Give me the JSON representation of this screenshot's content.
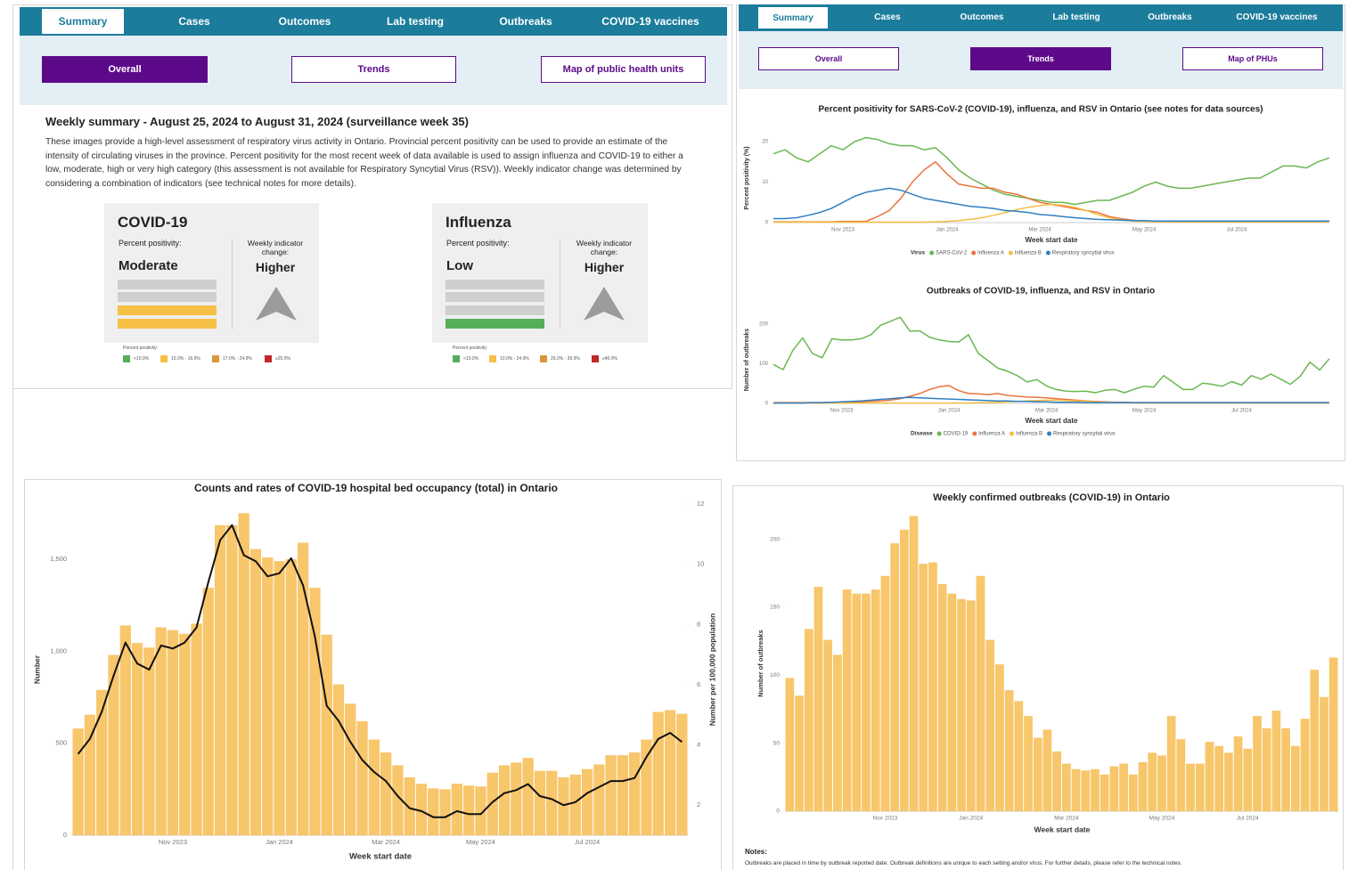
{
  "left_panel": {
    "tabs": [
      "Summary",
      "Cases",
      "Outcomes",
      "Lab testing",
      "Outbreaks",
      "COVID-19 vaccines"
    ],
    "buttons": [
      "Overall",
      "Trends",
      "Map of public health units"
    ],
    "heading": "Weekly summary - August 25, 2024 to August 31, 2024 (surveillance week 35)",
    "paragraph": "These images provide a high-level assessment of respiratory virus activity in Ontario. Provincial percent positivity can be used to provide an estimate of the intensity of circulating viruses in the province. Percent positivity for the most recent week of data available is used to assign influenza and COVID-19 to either a low, moderate, high or very high category (this assessment is not available for Respiratory Syncytial Virus (RSV)). Weekly indicator change was determined by considering a combination of indicators (see technical notes for more details).",
    "cards": [
      {
        "title": "COVID-19",
        "positivity_label": "Percent positivity:",
        "positivity": "Moderate",
        "change_label": "Weekly indicator change:",
        "change": "Higher",
        "legend_title": "Percent positivity:",
        "legend": [
          "<10.0%",
          "10.0% - 16.9%",
          "17.0% - 24.9%",
          "≥25.0%"
        ]
      },
      {
        "title": "Influenza",
        "positivity_label": "Percent positivity:",
        "positivity": "Low",
        "change_label": "Weekly indicator change:",
        "change": "Higher",
        "legend_title": "Percent positivity:",
        "legend": [
          "<10.0%",
          "10.0% - 24.9%",
          "25.0% - 39.9%",
          "≥40.0%"
        ]
      }
    ]
  },
  "right_panel": {
    "tabs": [
      "Summary",
      "Cases",
      "Outcomes",
      "Lab testing",
      "Outbreaks",
      "COVID-19 vaccines"
    ],
    "buttons": [
      "Overall",
      "Trends",
      "Map of PHUs"
    ]
  },
  "chart_data": [
    {
      "type": "line",
      "title": "Percent positivity for SARS-CoV-2 (COVID-19), influenza, and RSV in Ontario (see notes for data sources)",
      "x_label": "Week start date",
      "y_label": "Percent positivity (%)",
      "legend_title": "Virus",
      "categories": [
        null,
        null,
        null,
        null,
        null,
        null,
        "Nov 2023",
        null,
        null,
        null,
        null,
        null,
        null,
        null,
        null,
        "Jan 2024",
        null,
        null,
        null,
        null,
        null,
        null,
        null,
        "Mar 2024",
        null,
        null,
        null,
        null,
        null,
        null,
        null,
        null,
        "May 2024",
        null,
        null,
        null,
        null,
        null,
        null,
        null,
        "Jul 2024",
        null,
        null,
        null,
        null,
        null,
        null,
        null,
        null
      ],
      "ylim": [
        0,
        22
      ],
      "yticks": [
        0,
        10,
        20
      ],
      "grid": false,
      "series": [
        {
          "name": "SARS-CoV-2",
          "color": "#6ab750",
          "values": [
            17,
            18,
            16,
            15,
            17,
            19,
            18,
            20,
            21,
            20.5,
            19.5,
            19,
            19,
            18,
            18.5,
            16,
            13,
            11,
            9.5,
            8,
            7,
            6.5,
            6,
            5.5,
            5,
            5,
            4.5,
            5,
            5.5,
            5.5,
            6.5,
            7.5,
            9,
            10,
            9,
            8.5,
            8.5,
            9,
            9.5,
            10,
            10.5,
            11,
            11,
            12.5,
            14,
            14,
            13.5,
            15,
            16
          ]
        },
        {
          "name": "Influenza A",
          "color": "#e8743b",
          "values": [
            0.2,
            0.2,
            0.2,
            0.2,
            0.2,
            0.2,
            0.3,
            0.3,
            0.3,
            1.5,
            3,
            6,
            10,
            13,
            15,
            12,
            9.5,
            9,
            8.5,
            8.5,
            7.5,
            7,
            6,
            5,
            4.5,
            4,
            3.5,
            3,
            2.5,
            1.5,
            1,
            0.6,
            0.4,
            0.3,
            0.3,
            0.2,
            0.2,
            0.2,
            0.2,
            0.2,
            0.2,
            0.2,
            0.2,
            0.2,
            0.2,
            0.2,
            0.2,
            0.2,
            0.3
          ]
        },
        {
          "name": "Influenza B",
          "color": "#f4bd45",
          "values": [
            0.1,
            0.1,
            0.1,
            0.1,
            0.1,
            0.1,
            0.1,
            0.1,
            0.1,
            0.1,
            0.1,
            0.1,
            0.1,
            0.1,
            0.2,
            0.3,
            0.5,
            0.8,
            1.2,
            1.8,
            2.5,
            3.2,
            3.8,
            4.2,
            4.5,
            4.3,
            3.8,
            3,
            2,
            1.2,
            0.7,
            0.4,
            0.3,
            0.2,
            0.2,
            0.2,
            0.2,
            0.2,
            0.2,
            0.2,
            0.2,
            0.2,
            0.2,
            0.2,
            0.2,
            0.2,
            0.2,
            0.2,
            0.2
          ]
        },
        {
          "name": "Respiratory syncytial virus",
          "color": "#2f7fc1",
          "values": [
            1,
            1,
            1.2,
            1.8,
            2.5,
            3.5,
            5,
            6.5,
            7.5,
            8,
            8.5,
            8,
            7,
            6,
            5.5,
            5,
            4.5,
            4,
            3.8,
            3.5,
            3,
            2.8,
            2.5,
            2,
            1.8,
            1.5,
            1.2,
            1,
            0.8,
            0.7,
            0.6,
            0.5,
            0.5,
            0.4,
            0.4,
            0.4,
            0.4,
            0.4,
            0.4,
            0.4,
            0.4,
            0.4,
            0.4,
            0.4,
            0.4,
            0.4,
            0.4,
            0.4,
            0.4
          ]
        }
      ]
    },
    {
      "type": "line",
      "title": "Outbreaks of COVID-19, influenza, and RSV in Ontario",
      "x_label": "Week start date",
      "y_label": "Number of outbreaks",
      "legend_title": "Disease",
      "categories": [
        null,
        null,
        null,
        null,
        null,
        null,
        null,
        "Nov 2023",
        null,
        null,
        null,
        null,
        null,
        null,
        null,
        null,
        null,
        null,
        "Jan 2024",
        null,
        null,
        null,
        null,
        null,
        null,
        null,
        null,
        null,
        "Mar 2024",
        null,
        null,
        null,
        null,
        null,
        null,
        null,
        null,
        null,
        "May 2024",
        null,
        null,
        null,
        null,
        null,
        null,
        null,
        null,
        null,
        "Jul 2024",
        null,
        null,
        null,
        null,
        null,
        null,
        null,
        null,
        null
      ],
      "ylim": [
        0,
        220
      ],
      "yticks": [
        0,
        100,
        200
      ],
      "grid": false,
      "series": [
        {
          "name": "COVID-19",
          "color": "#6ab750",
          "values": [
            98,
            85,
            134,
            165,
            126,
            115,
            163,
            160,
            160,
            163,
            173,
            197,
            207,
            217,
            182,
            183,
            167,
            160,
            156,
            155,
            173,
            126,
            108,
            89,
            81,
            70,
            54,
            60,
            44,
            35,
            31,
            30,
            31,
            27,
            33,
            35,
            27,
            36,
            43,
            41,
            70,
            53,
            35,
            35,
            51,
            48,
            43,
            55,
            46,
            70,
            61,
            74,
            61,
            48,
            68,
            104,
            84,
            113
          ]
        },
        {
          "name": "Influenza A",
          "color": "#e8743b",
          "values": [
            2,
            2,
            2,
            2,
            2,
            2,
            3,
            3,
            3,
            4,
            5,
            6,
            8,
            12,
            18,
            25,
            35,
            42,
            45,
            32,
            25,
            24,
            22,
            25,
            20,
            18,
            16,
            15,
            14,
            12,
            10,
            8,
            6,
            5,
            4,
            3,
            3,
            2,
            2,
            2,
            2,
            2,
            2,
            2,
            2,
            2,
            2,
            2,
            2,
            2,
            2,
            2,
            2,
            2,
            2,
            2,
            2,
            2
          ]
        },
        {
          "name": "Influenza B",
          "color": "#f4bd45",
          "values": [
            1,
            1,
            1,
            1,
            1,
            1,
            1,
            1,
            1,
            1,
            1,
            1,
            1,
            1,
            1,
            1,
            1,
            1,
            1,
            1,
            1,
            2,
            2,
            3,
            4,
            5,
            6,
            7,
            8,
            8,
            7,
            6,
            5,
            4,
            3,
            2,
            2,
            1,
            1,
            1,
            1,
            1,
            1,
            1,
            1,
            1,
            1,
            1,
            1,
            1,
            1,
            1,
            1,
            1,
            1,
            1,
            1,
            1
          ]
        },
        {
          "name": "Respiratory syncytial virus",
          "color": "#2f7fc1",
          "values": [
            1,
            1,
            1,
            1,
            2,
            2,
            3,
            4,
            5,
            6,
            8,
            10,
            12,
            14,
            15,
            14,
            13,
            12,
            11,
            10,
            9,
            8,
            7,
            6,
            6,
            5,
            5,
            4,
            4,
            3,
            3,
            3,
            2,
            2,
            2,
            2,
            2,
            2,
            2,
            2,
            2,
            2,
            2,
            2,
            2,
            2,
            2,
            2,
            2,
            2,
            2,
            2,
            2,
            2,
            2,
            2,
            2,
            2
          ]
        }
      ]
    },
    {
      "type": "bar",
      "title": "Counts and rates of COVID-19 hospital bed occupancy (total) in Ontario",
      "x_label": "Week start date",
      "y_label": "Number",
      "y2_label": "Number per 100,000 population",
      "categories": [
        null,
        null,
        null,
        null,
        null,
        null,
        null,
        null,
        "Nov 2023",
        null,
        null,
        null,
        null,
        null,
        null,
        null,
        null,
        "Jan 2024",
        null,
        null,
        null,
        null,
        null,
        null,
        null,
        null,
        "Mar 2024",
        null,
        null,
        null,
        null,
        null,
        null,
        null,
        "May 2024",
        null,
        null,
        null,
        null,
        null,
        null,
        null,
        null,
        "Jul 2024",
        null,
        null,
        null,
        null,
        null,
        null,
        null,
        null
      ],
      "ylim": [
        0,
        1800
      ],
      "yticks": [
        0,
        500,
        {
          "value": 1000,
          "label": "1,000"
        },
        {
          "value": 1500,
          "label": "1,500"
        }
      ],
      "y2lim": [
        1,
        12
      ],
      "y2ticks": [
        2,
        4,
        6,
        8,
        10,
        12
      ],
      "grid": false,
      "series": [
        {
          "color": "#f8c66b",
          "values": [
            580,
            655,
            790,
            980,
            1140,
            1045,
            1020,
            1130,
            1115,
            1095,
            1150,
            1345,
            1685,
            1685,
            1750,
            1555,
            1510,
            1490,
            1500,
            1590,
            1345,
            1090,
            820,
            715,
            620,
            520,
            450,
            380,
            315,
            280,
            255,
            250,
            280,
            270,
            265,
            340,
            380,
            395,
            420,
            350,
            350,
            315,
            330,
            360,
            385,
            435,
            435,
            450,
            520,
            670,
            680,
            660
          ]
        },
        {
          "color": "#111111",
          "type": "line",
          "axis": "y2",
          "values": [
            3.7,
            4.2,
            5.1,
            6.3,
            7.4,
            6.7,
            6.5,
            7.3,
            7.2,
            7.4,
            7.9,
            9.4,
            10.8,
            11.3,
            10.3,
            10.1,
            9.6,
            9.7,
            10.2,
            9.3,
            7.6,
            5.3,
            4.8,
            4.1,
            3.5,
            3.1,
            2.8,
            2.3,
            1.9,
            1.8,
            1.6,
            1.6,
            1.8,
            1.7,
            1.7,
            2.1,
            2.4,
            2.5,
            2.7,
            2.3,
            2.2,
            2,
            2.1,
            2.4,
            2.6,
            2.8,
            2.8,
            2.9,
            3.6,
            4.2,
            4.4,
            4.1
          ]
        }
      ]
    },
    {
      "type": "bar",
      "title": "Weekly confirmed outbreaks (COVID-19) in Ontario",
      "x_label": "Week start date",
      "y_label": "Number of outbreaks",
      "categories": [
        null,
        null,
        null,
        null,
        null,
        null,
        null,
        null,
        null,
        null,
        "Nov 2023",
        null,
        null,
        null,
        null,
        null,
        null,
        null,
        null,
        "Jan 2024",
        null,
        null,
        null,
        null,
        null,
        null,
        null,
        null,
        null,
        "Mar 2024",
        null,
        null,
        null,
        null,
        null,
        null,
        null,
        null,
        null,
        "May 2024",
        null,
        null,
        null,
        null,
        null,
        null,
        null,
        null,
        "Jul 2024",
        null,
        null,
        null,
        null,
        null,
        null,
        null,
        null,
        null
      ],
      "ylim": [
        0,
        220
      ],
      "yticks": [
        0,
        50,
        100,
        150,
        200
      ],
      "grid": false,
      "color": "#f8c66b",
      "values": [
        98,
        85,
        134,
        165,
        126,
        115,
        163,
        160,
        160,
        163,
        173,
        197,
        207,
        217,
        182,
        183,
        167,
        160,
        156,
        155,
        173,
        126,
        108,
        89,
        81,
        70,
        54,
        60,
        44,
        35,
        31,
        30,
        31,
        27,
        33,
        35,
        27,
        36,
        43,
        41,
        70,
        53,
        35,
        35,
        51,
        48,
        43,
        55,
        46,
        70,
        61,
        74,
        61,
        48,
        68,
        104,
        84,
        113
      ]
    }
  ],
  "notes": {
    "title": "Notes:",
    "text": "Outbreaks are placed in time by outbreak reported date. Outbreak definitions are unique to each setting and/or virus. For further details, please refer to the technical notes."
  }
}
